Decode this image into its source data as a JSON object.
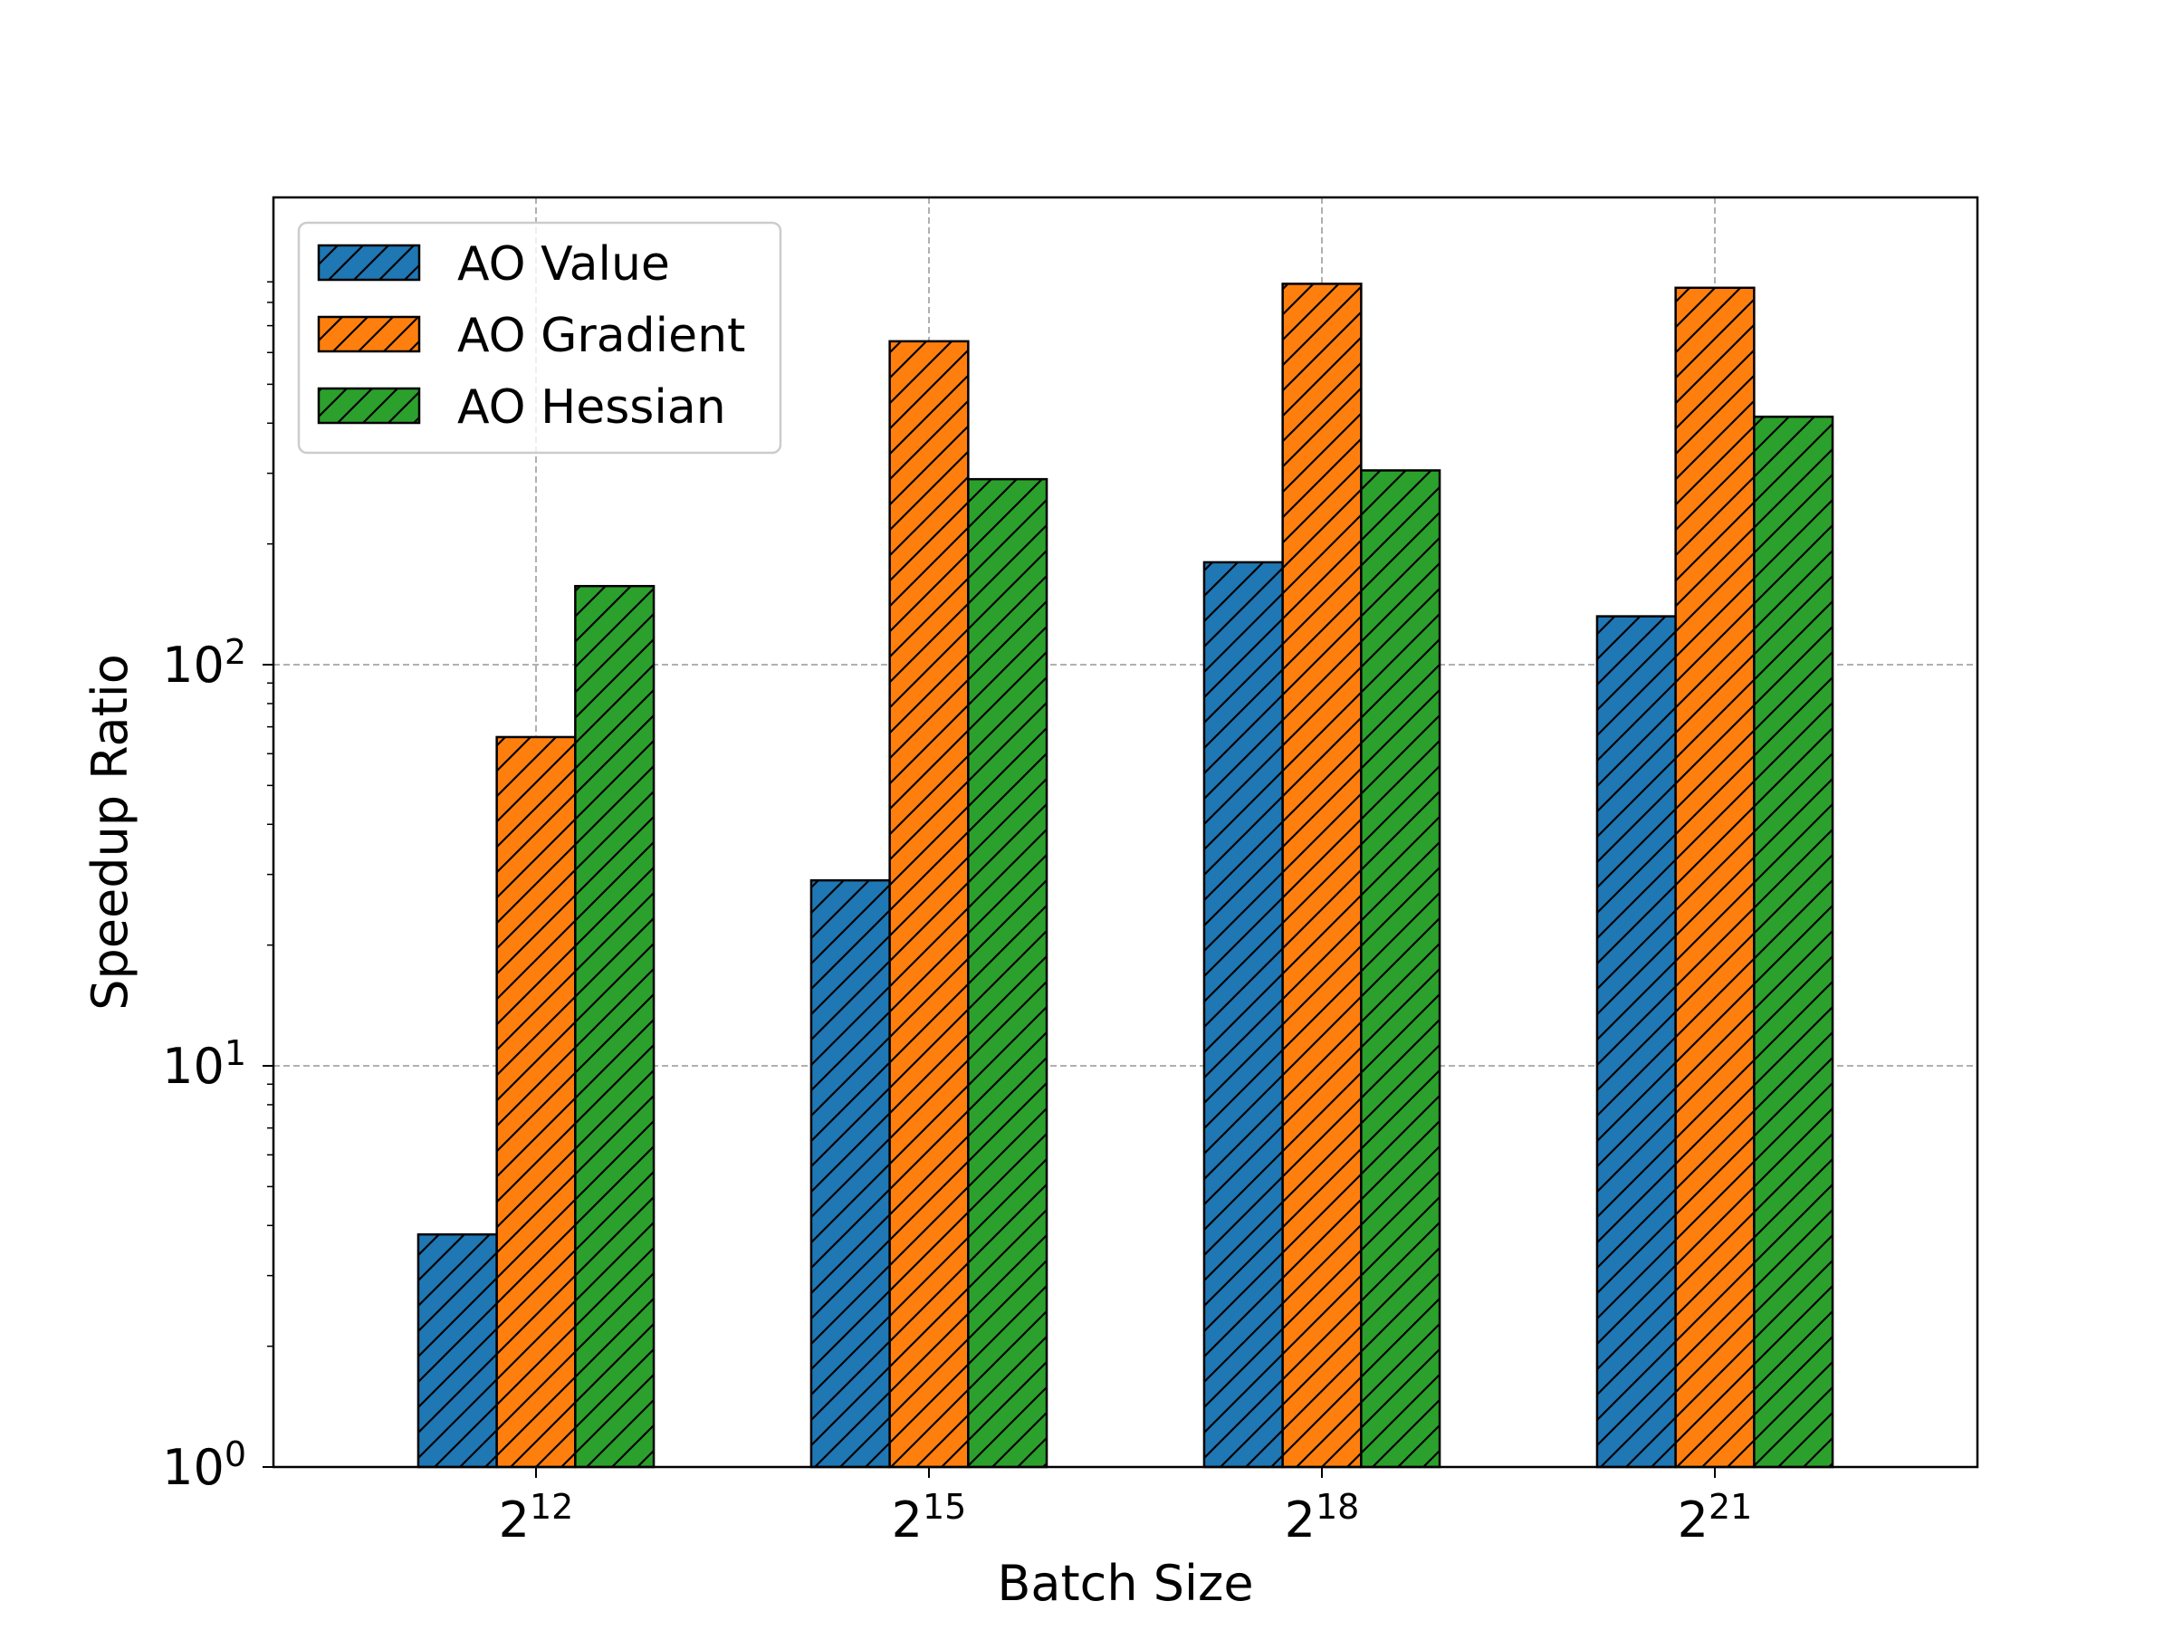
{
  "chart_data": {
    "type": "bar",
    "scale": "log",
    "title": "",
    "xlabel": "Batch Size",
    "ylabel": "Speedup Ratio",
    "categories": [
      {
        "base": "2",
        "exp": "12"
      },
      {
        "base": "2",
        "exp": "15"
      },
      {
        "base": "2",
        "exp": "18"
      },
      {
        "base": "2",
        "exp": "21"
      }
    ],
    "series": [
      {
        "name": "AO Value",
        "color": "#1f77b4",
        "values": [
          3.8,
          29,
          180,
          132
        ]
      },
      {
        "name": "AO Gradient",
        "color": "#ff7f0e",
        "values": [
          66,
          640,
          890,
          870
        ]
      },
      {
        "name": "AO Hessian",
        "color": "#2ca02c",
        "values": [
          157,
          290,
          305,
          415
        ]
      }
    ],
    "yticks": [
      {
        "base": "10",
        "exp": "0",
        "value": 1
      },
      {
        "base": "10",
        "exp": "1",
        "value": 10
      },
      {
        "base": "10",
        "exp": "2",
        "value": 100
      }
    ],
    "ylim": [
      1,
      1450
    ],
    "grid": true,
    "grid_style": "dashed",
    "hatch": "diagonal",
    "legend_position": "top-left"
  }
}
